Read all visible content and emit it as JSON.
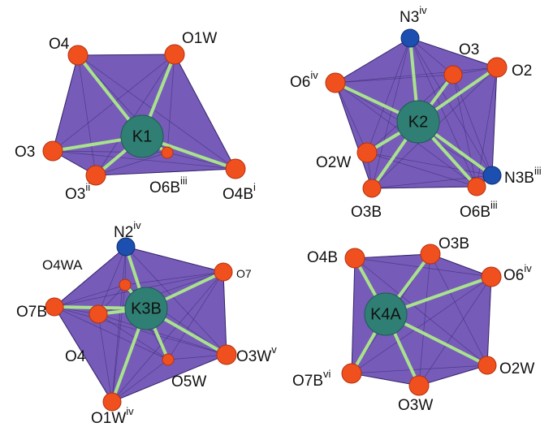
{
  "polyhedra": [
    {
      "center": "K1",
      "atoms": [
        {
          "label": "O4"
        },
        {
          "label": "O1W"
        },
        {
          "label": "O3"
        },
        {
          "label": "O3",
          "sup": "ii"
        },
        {
          "label": "O6B",
          "sup": "iii"
        },
        {
          "label": "O4B",
          "sup": "i"
        }
      ]
    },
    {
      "center": "K2",
      "atoms": [
        {
          "label": "N3",
          "sup": "iv"
        },
        {
          "label": "O3"
        },
        {
          "label": "O2"
        },
        {
          "label": "O6",
          "sup": "iv"
        },
        {
          "label": "O2W"
        },
        {
          "label": "O3B"
        },
        {
          "label": "O6B",
          "sup": "iii"
        },
        {
          "label": "N3B",
          "sup": "iii"
        }
      ]
    },
    {
      "center": "K3B",
      "atoms": [
        {
          "label": "N2",
          "sup": "iv"
        },
        {
          "label": "O4WA"
        },
        {
          "label": "O7"
        },
        {
          "label": "O7B"
        },
        {
          "label": "O4"
        },
        {
          "label": "O5W"
        },
        {
          "label": "O3W",
          "sup": "v"
        },
        {
          "label": "O1W",
          "sup": "iv"
        }
      ]
    },
    {
      "center": "K4A",
      "atoms": [
        {
          "label": "O4B"
        },
        {
          "label": "O3B"
        },
        {
          "label": "O6",
          "sup": "iv"
        },
        {
          "label": "O2W"
        },
        {
          "label": "O7B",
          "sup": "vi"
        },
        {
          "label": "O3W"
        }
      ]
    }
  ]
}
